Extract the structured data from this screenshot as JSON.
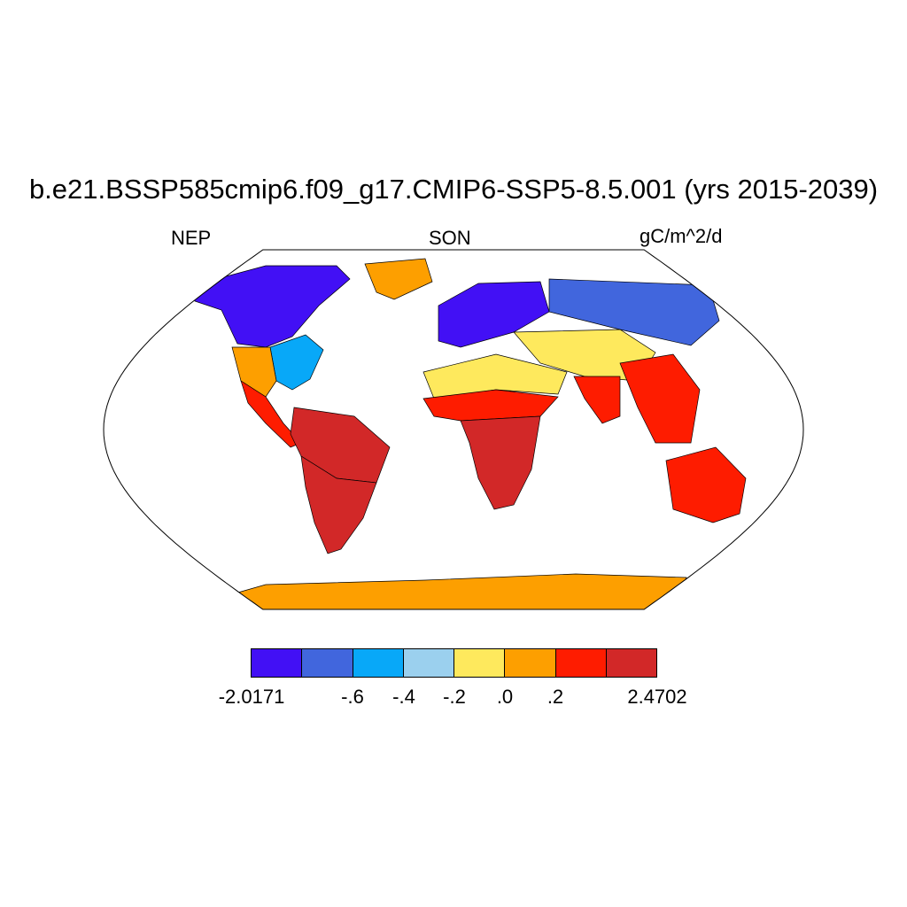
{
  "title": "b.e21.BSSP585cmip6.f09_g17.CMIP6-SSP5-8.5.001 (yrs 2015-2039)",
  "left_string": "NEP",
  "center_string": "SON",
  "right_string": "gC/m^2/d",
  "projection": "Robinson",
  "chart_data": {
    "type": "heatmap",
    "variable": "NEP",
    "season": "SON",
    "units": "gC/m^2/d",
    "min": -2.0171,
    "max": 2.4702,
    "levels": [
      -0.6,
      -0.4,
      -0.2,
      0.0,
      0.2
    ],
    "colors": [
      "#4210f5",
      "#4166dd",
      "#08a8f8",
      "#9bd0ee",
      "#fee95d",
      "#fd9f00",
      "#fe1c00",
      "#d22828"
    ],
    "colorbar_labels": [
      "-2.0171",
      "-.6",
      "-.4",
      "-.2",
      ".0",
      ".2",
      "2.4702"
    ],
    "land_region_values": [
      {
        "region": "Canada / Alaska boreal",
        "value": -1.0
      },
      {
        "region": "Eastern USA",
        "value": -0.5
      },
      {
        "region": "Western USA",
        "value": 0.1
      },
      {
        "region": "Mexico / Central America",
        "value": 0.5
      },
      {
        "region": "Amazon",
        "value": 1.2
      },
      {
        "region": "Southern South America",
        "value": 1.5
      },
      {
        "region": "Greenland",
        "value": 0.1
      },
      {
        "region": "Northern Europe / Scandinavia",
        "value": -1.0
      },
      {
        "region": "Siberia",
        "value": -0.7
      },
      {
        "region": "Central Asia",
        "value": -0.1
      },
      {
        "region": "China / SE Asia",
        "value": 1.0
      },
      {
        "region": "Sahara / North Africa",
        "value": -0.1
      },
      {
        "region": "Sahel",
        "value": 0.5
      },
      {
        "region": "Central / Southern Africa",
        "value": 1.2
      },
      {
        "region": "India",
        "value": 0.3
      },
      {
        "region": "Australia",
        "value": 0.8
      },
      {
        "region": "Antarctica",
        "value": 0.1
      }
    ]
  }
}
